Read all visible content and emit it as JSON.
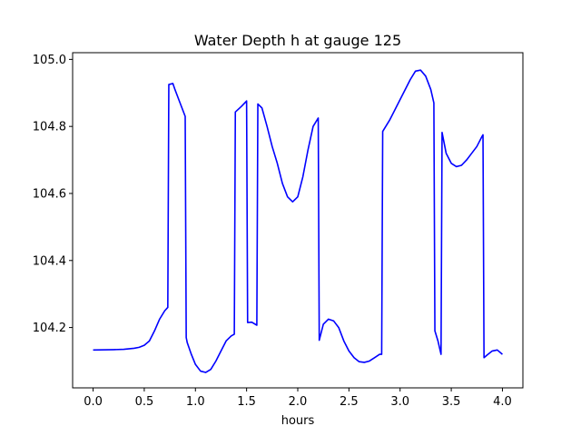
{
  "chart_data": {
    "type": "line",
    "title": "Water Depth h at gauge 125",
    "xlabel": "hours",
    "ylabel": "",
    "xlim": [
      -0.2,
      4.2
    ],
    "ylim": [
      104.02,
      105.02
    ],
    "xticks": [
      "0.0",
      "0.5",
      "1.0",
      "1.5",
      "2.0",
      "2.5",
      "3.0",
      "3.5",
      "4.0"
    ],
    "xtick_values": [
      0.0,
      0.5,
      1.0,
      1.5,
      2.0,
      2.5,
      3.0,
      3.5,
      4.0
    ],
    "yticks": [
      "104.2",
      "104.4",
      "104.6",
      "104.8",
      "105.0"
    ],
    "ytick_values": [
      104.2,
      104.4,
      104.6,
      104.8,
      105.0
    ],
    "grid": false,
    "series": [
      {
        "color": "#0000ff",
        "x": [
          0.0,
          0.2,
          0.3,
          0.4,
          0.45,
          0.5,
          0.55,
          0.6,
          0.65,
          0.7,
          0.73,
          0.74,
          0.78,
          0.8,
          0.85,
          0.9,
          0.91,
          0.92,
          0.96,
          1.0,
          1.05,
          1.1,
          1.15,
          1.2,
          1.25,
          1.3,
          1.35,
          1.38,
          1.39,
          1.45,
          1.5,
          1.51,
          1.55,
          1.6,
          1.61,
          1.65,
          1.7,
          1.75,
          1.8,
          1.85,
          1.9,
          1.95,
          2.0,
          2.05,
          2.1,
          2.15,
          2.2,
          2.21,
          2.25,
          2.3,
          2.35,
          2.4,
          2.45,
          2.5,
          2.55,
          2.6,
          2.65,
          2.7,
          2.75,
          2.8,
          2.82,
          2.83,
          2.9,
          3.0,
          3.1,
          3.15,
          3.2,
          3.25,
          3.3,
          3.33,
          3.34,
          3.37,
          3.4,
          3.41,
          3.45,
          3.5,
          3.55,
          3.6,
          3.65,
          3.7,
          3.75,
          3.8,
          3.81,
          3.82,
          3.85,
          3.9,
          3.95,
          4.0
        ],
        "y": [
          104.133,
          104.134,
          104.135,
          104.138,
          104.141,
          104.147,
          104.16,
          104.19,
          104.225,
          104.25,
          104.26,
          104.925,
          104.928,
          104.91,
          104.87,
          104.83,
          104.17,
          104.155,
          104.12,
          104.09,
          104.07,
          104.066,
          104.075,
          104.1,
          104.13,
          104.16,
          104.175,
          104.18,
          104.843,
          104.86,
          104.876,
          104.215,
          104.216,
          104.207,
          104.867,
          104.855,
          104.8,
          104.74,
          104.69,
          104.63,
          104.59,
          104.575,
          104.59,
          104.65,
          104.73,
          104.8,
          104.825,
          104.162,
          104.21,
          104.225,
          104.22,
          104.2,
          104.16,
          104.13,
          104.11,
          104.098,
          104.096,
          104.1,
          104.11,
          104.12,
          104.12,
          104.785,
          104.82,
          104.88,
          104.94,
          104.965,
          104.968,
          104.95,
          104.91,
          104.87,
          104.19,
          104.16,
          104.12,
          104.782,
          104.72,
          104.69,
          104.68,
          104.684,
          104.7,
          104.72,
          104.74,
          104.77,
          104.775,
          104.11,
          104.118,
          104.13,
          104.133,
          104.12
        ]
      }
    ]
  }
}
